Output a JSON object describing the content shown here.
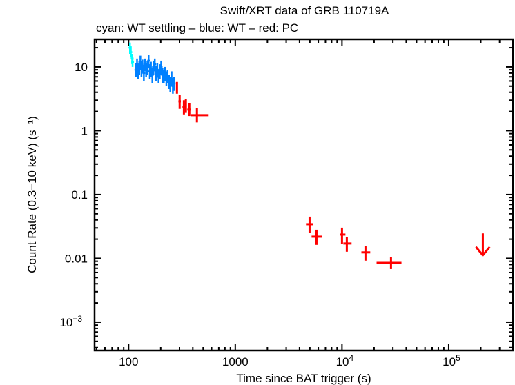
{
  "chart_data": {
    "type": "scatter",
    "title": "Swift/XRT data of GRB 110719A",
    "subtitle": "cyan: WT settling – blue: WT – red: PC",
    "xlabel": "Time since BAT trigger (s)",
    "ylabel": "Count Rate (0.3−10 keV) (s⁻¹)",
    "xscale": "log",
    "yscale": "log",
    "xlim": [
      48,
      400000
    ],
    "ylim": [
      0.00036,
      27
    ],
    "grid": false,
    "xticks": [
      {
        "value": 100,
        "base": "100",
        "exp": ""
      },
      {
        "value": 1000,
        "base": "1000",
        "exp": ""
      },
      {
        "value": 10000,
        "base": "10",
        "exp": "4"
      },
      {
        "value": 100000,
        "base": "10",
        "exp": "5"
      }
    ],
    "yticks": [
      {
        "value": 10,
        "base": "10",
        "exp": ""
      },
      {
        "value": 1,
        "base": "1",
        "exp": ""
      },
      {
        "value": 0.1,
        "base": "0.1",
        "exp": ""
      },
      {
        "value": 0.01,
        "base": "0.01",
        "exp": ""
      },
      {
        "value": 0.001,
        "base": "10",
        "exp": "−3"
      }
    ],
    "series": [
      {
        "name": "WT settling",
        "color": "#00ffff",
        "points": [
          [
            103,
            20,
            16,
            24
          ],
          [
            105,
            17,
            14,
            21
          ],
          [
            108,
            13.5,
            11,
            16
          ],
          [
            109,
            11.9,
            10,
            14
          ]
        ]
      },
      {
        "name": "WT",
        "color": "#0080ff",
        "points": [
          [
            117,
            9,
            7,
            11.5
          ],
          [
            120,
            11,
            8.5,
            13.5
          ],
          [
            123,
            8.5,
            6.5,
            11
          ],
          [
            126,
            10,
            7.5,
            12.5
          ],
          [
            129,
            12,
            9,
            15
          ],
          [
            132,
            9.5,
            7,
            12
          ],
          [
            135,
            10.5,
            8,
            13
          ],
          [
            139,
            8,
            6,
            10.5
          ],
          [
            142,
            11,
            8.5,
            13.5
          ],
          [
            146,
            9,
            7,
            11.5
          ],
          [
            150,
            10,
            7.5,
            12.5
          ],
          [
            154,
            12.5,
            9.5,
            15.5
          ],
          [
            158,
            8.5,
            6.5,
            11
          ],
          [
            162,
            9.5,
            7,
            12
          ],
          [
            167,
            7.5,
            5.5,
            9.5
          ],
          [
            171,
            10,
            7.5,
            12.5
          ],
          [
            176,
            11,
            8.5,
            13.5
          ],
          [
            181,
            8,
            6,
            10.5
          ],
          [
            186,
            9,
            7,
            11.5
          ],
          [
            191,
            7,
            5.5,
            9
          ],
          [
            196,
            8.5,
            6.5,
            11
          ],
          [
            202,
            10,
            7.5,
            12.5
          ],
          [
            208,
            7.5,
            5.5,
            9.5
          ],
          [
            214,
            7,
            5.5,
            9
          ],
          [
            220,
            8,
            6,
            10
          ],
          [
            226,
            6.5,
            5,
            8.5
          ],
          [
            232,
            7,
            5.5,
            9
          ],
          [
            239,
            6,
            4.5,
            7.5
          ],
          [
            246,
            5.5,
            4,
            7
          ],
          [
            253,
            6.5,
            5,
            8.5
          ],
          [
            260,
            5,
            3.8,
            6.5
          ],
          [
            267,
            5.5,
            4.2,
            7
          ]
        ]
      },
      {
        "name": "PC",
        "color": "#ff0000",
        "points": [
          [
            284,
            4.74,
            3.8,
            5.8,
            280,
            289
          ],
          [
            301,
            2.88,
            2.2,
            3.6,
            293,
            309
          ],
          [
            330,
            2.36,
            1.8,
            3.0,
            320,
            338
          ],
          [
            344,
            2.48,
            1.9,
            3.1,
            338,
            350
          ],
          [
            371,
            2.14,
            1.7,
            2.7,
            355,
            381
          ],
          [
            437,
            1.75,
            1.35,
            2.25,
            381,
            563
          ],
          [
            4970,
            0.0343,
            0.0248,
            0.0451,
            4600,
            5350
          ],
          [
            5770,
            0.0219,
            0.0163,
            0.0281,
            5190,
            6490
          ],
          [
            10000,
            0.0236,
            0.0167,
            0.0303,
            9570,
            10770
          ],
          [
            11100,
            0.0171,
            0.0127,
            0.0214,
            10300,
            12300
          ],
          [
            16600,
            0.0124,
            0.0092,
            0.0155,
            15200,
            18400
          ],
          [
            28800,
            0.0085,
            0.0068,
            0.0104,
            21100,
            36100
          ]
        ]
      },
      {
        "name": "PC upper limit",
        "color": "#ff0000",
        "points": [
          [
            209000,
            0.0112
          ]
        ]
      }
    ]
  }
}
